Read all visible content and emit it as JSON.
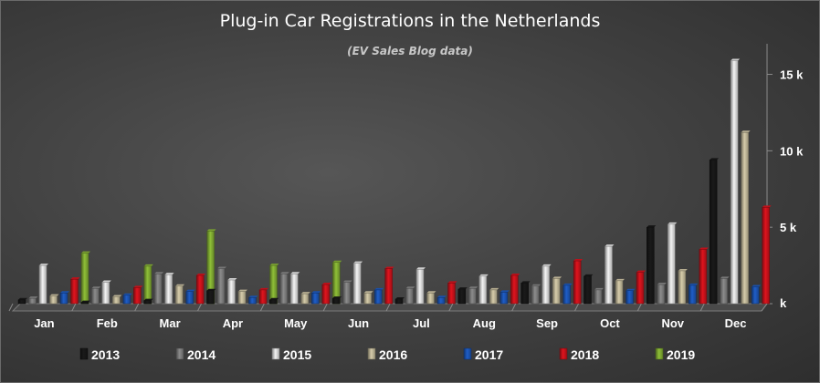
{
  "chart_data": {
    "type": "bar",
    "title": "Plug-in Car Registrations in the Netherlands",
    "subtitle": "(EV Sales Blog data)",
    "categories": [
      "Jan",
      "Feb",
      "Mar",
      "Apr",
      "May",
      "Jun",
      "Jul",
      "Aug",
      "Sep",
      "Oct",
      "Nov",
      "Dec"
    ],
    "ylim": [
      0,
      17000
    ],
    "yticks": [
      0,
      5000,
      10000,
      15000
    ],
    "ytick_labels": [
      "k",
      "5 k",
      "10 k",
      "15 k"
    ],
    "legend_position": "bottom",
    "series": [
      {
        "name": "2013",
        "color": "#1a1a1a",
        "values": [
          250,
          80,
          200,
          850,
          250,
          350,
          300,
          950,
          1350,
          1800,
          5000,
          9400
        ]
      },
      {
        "name": "2014",
        "color": "#8c8c8c",
        "values": [
          350,
          1000,
          1950,
          2300,
          1950,
          1400,
          1000,
          1000,
          1150,
          900,
          1250,
          1650
        ]
      },
      {
        "name": "2015",
        "color": "#f4f4f4",
        "values": [
          2500,
          1400,
          1900,
          1550,
          1950,
          2650,
          2250,
          1800,
          2450,
          3750,
          5200,
          15900
        ]
      },
      {
        "name": "2016",
        "color": "#d6ccaa",
        "values": [
          500,
          450,
          1150,
          800,
          650,
          700,
          700,
          900,
          1650,
          1500,
          2150,
          11200
        ]
      },
      {
        "name": "2017",
        "color": "#1f5ec8",
        "values": [
          700,
          550,
          800,
          400,
          700,
          900,
          400,
          750,
          1200,
          850,
          1200,
          1100
        ]
      },
      {
        "name": "2018",
        "color": "#e0141e",
        "values": [
          1600,
          1050,
          1850,
          900,
          1250,
          2300,
          1350,
          1850,
          2800,
          2050,
          3550,
          6300
        ]
      },
      {
        "name": "2019",
        "color": "#8fbf38",
        "values": [
          3300,
          2450,
          4750,
          2500,
          2700,
          null,
          null,
          null,
          null,
          null,
          null,
          null
        ]
      }
    ]
  }
}
